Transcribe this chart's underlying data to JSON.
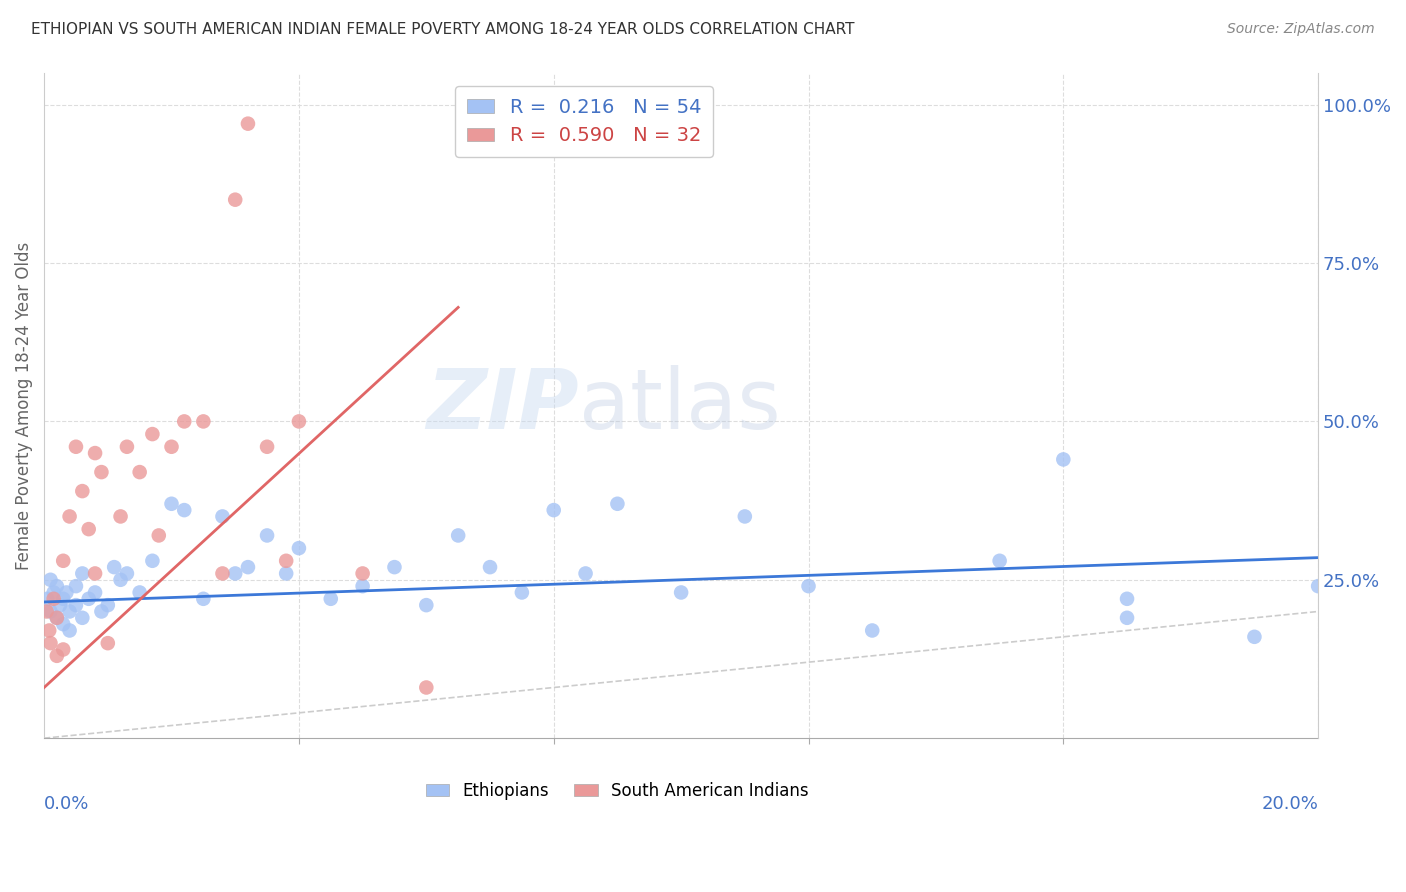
{
  "title": "ETHIOPIAN VS SOUTH AMERICAN INDIAN FEMALE POVERTY AMONG 18-24 YEAR OLDS CORRELATION CHART",
  "source": "Source: ZipAtlas.com",
  "ylabel": "Female Poverty Among 18-24 Year Olds",
  "r_ethiopian": 0.216,
  "n_ethiopian": 54,
  "r_south_american": 0.59,
  "n_south_american": 32,
  "ethiopian_color": "#a4c2f4",
  "south_american_color": "#ea9999",
  "ethiopian_line_color": "#3c78d8",
  "south_american_line_color": "#e06666",
  "diagonal_color": "#cccccc",
  "background_color": "#ffffff",
  "grid_color": "#dddddd",
  "tick_color": "#4472c4",
  "ylabel_color": "#666666",
  "title_color": "#333333",
  "source_color": "#888888",
  "xlim": [
    0.0,
    0.2
  ],
  "ylim": [
    0.0,
    1.05
  ],
  "yticks": [
    0.25,
    0.5,
    0.75,
    1.0
  ],
  "ytick_labels": [
    "25.0%",
    "50.0%",
    "75.0%",
    "100.0%"
  ],
  "eth_x": [
    0.0005,
    0.001,
    0.001,
    0.0015,
    0.002,
    0.002,
    0.0025,
    0.003,
    0.003,
    0.0035,
    0.004,
    0.004,
    0.005,
    0.005,
    0.006,
    0.006,
    0.007,
    0.008,
    0.009,
    0.01,
    0.011,
    0.012,
    0.013,
    0.015,
    0.017,
    0.02,
    0.022,
    0.025,
    0.028,
    0.03,
    0.032,
    0.035,
    0.038,
    0.04,
    0.045,
    0.05,
    0.055,
    0.06,
    0.065,
    0.07,
    0.075,
    0.08,
    0.085,
    0.09,
    0.1,
    0.11,
    0.12,
    0.13,
    0.15,
    0.16,
    0.17,
    0.17,
    0.19,
    0.2
  ],
  "eth_y": [
    0.22,
    0.25,
    0.2,
    0.23,
    0.24,
    0.19,
    0.21,
    0.22,
    0.18,
    0.23,
    0.2,
    0.17,
    0.24,
    0.21,
    0.26,
    0.19,
    0.22,
    0.23,
    0.2,
    0.21,
    0.27,
    0.25,
    0.26,
    0.23,
    0.28,
    0.37,
    0.36,
    0.22,
    0.35,
    0.26,
    0.27,
    0.32,
    0.26,
    0.3,
    0.22,
    0.24,
    0.27,
    0.21,
    0.32,
    0.27,
    0.23,
    0.36,
    0.26,
    0.37,
    0.23,
    0.35,
    0.24,
    0.17,
    0.28,
    0.44,
    0.19,
    0.22,
    0.16,
    0.24
  ],
  "sam_x": [
    0.0004,
    0.0008,
    0.001,
    0.0015,
    0.002,
    0.002,
    0.003,
    0.003,
    0.004,
    0.005,
    0.006,
    0.007,
    0.008,
    0.008,
    0.009,
    0.01,
    0.012,
    0.013,
    0.015,
    0.017,
    0.018,
    0.02,
    0.022,
    0.025,
    0.028,
    0.03,
    0.032,
    0.035,
    0.038,
    0.04,
    0.05,
    0.06
  ],
  "sam_y": [
    0.2,
    0.17,
    0.15,
    0.22,
    0.13,
    0.19,
    0.28,
    0.14,
    0.35,
    0.46,
    0.39,
    0.33,
    0.45,
    0.26,
    0.42,
    0.15,
    0.35,
    0.46,
    0.42,
    0.48,
    0.32,
    0.46,
    0.5,
    0.5,
    0.26,
    0.85,
    0.97,
    0.46,
    0.28,
    0.5,
    0.26,
    0.08
  ],
  "eth_line_x": [
    0.0,
    0.2
  ],
  "eth_line_y": [
    0.215,
    0.285
  ],
  "sam_line_x": [
    0.0,
    0.065
  ],
  "sam_line_y": [
    0.08,
    0.68
  ]
}
